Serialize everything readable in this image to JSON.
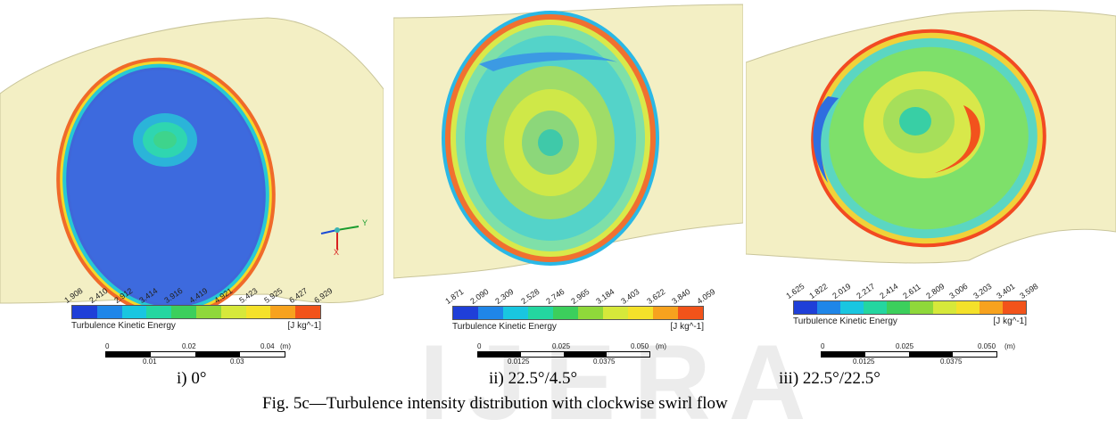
{
  "panels": [
    {
      "caption": "i) 0°",
      "tick_labels": [
        "1.908",
        "2.410",
        "2.912",
        "3.414",
        "3.916",
        "4.419",
        "4.921",
        "5.423",
        "5.925",
        "6.427",
        "6.929"
      ],
      "quantity_label": "Turbulence Kinetic Energy",
      "unit_label": "[J kg^-1]",
      "scale_top": [
        "0",
        "0.02",
        "0.04",
        "(m)"
      ],
      "scale_bottom": [
        "0.01",
        "0.03"
      ],
      "axis_labels": {
        "y": "Y",
        "x": "X"
      }
    },
    {
      "caption": "ii) 22.5°/4.5°",
      "tick_labels": [
        "1.871",
        "2.090",
        "2.309",
        "2.528",
        "2.746",
        "2.965",
        "3.184",
        "3.403",
        "3.622",
        "3.840",
        "4.059"
      ],
      "quantity_label": "Turbulence Kinetic Energy",
      "unit_label": "[J kg^-1]",
      "scale_top": [
        "0",
        "0.025",
        "0.050",
        "(m)"
      ],
      "scale_bottom": [
        "0.0125",
        "0.0375"
      ]
    },
    {
      "caption": "iii) 22.5°/22.5°",
      "tick_labels": [
        "1.625",
        "1.822",
        "2.019",
        "2.217",
        "2.414",
        "2.611",
        "2.809",
        "3.006",
        "3.203",
        "3.401",
        "3.598"
      ],
      "quantity_label": "Turbulence Kinetic Energy",
      "unit_label": "[J kg^-1]",
      "scale_top": [
        "0",
        "0.025",
        "0.050",
        "(m)"
      ],
      "scale_bottom": [
        "0.0125",
        "0.0375"
      ]
    }
  ],
  "colorbar_colors": [
    "#1f3fd8",
    "#1f86e8",
    "#19c6e0",
    "#24d6a0",
    "#3ccf5c",
    "#8fd83a",
    "#d6e83a",
    "#f4e12a",
    "#f7a21e",
    "#f2531a"
  ],
  "figure_caption": "Fig. 5c—Turbulence intensity distribution with clockwise swirl flow",
  "watermark_text": "IJERA"
}
